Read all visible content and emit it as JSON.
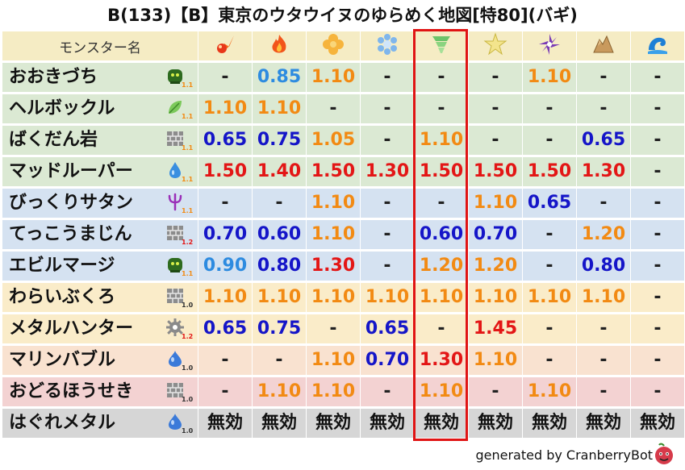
{
  "title": "B(133)【B】東京のウタウイヌのゆらめく地図[特80](バギ)",
  "header": {
    "name_label": "モンスター名",
    "elements": [
      "fire-attack",
      "fire-spell",
      "ice-spell-clover",
      "ice-flake",
      "wind-tornado",
      "light-burst",
      "dark-shuriken",
      "earth-rock",
      "water-wave"
    ]
  },
  "highlight_column_index": 4,
  "rows": [
    {
      "name": "おおきづち",
      "type_icon": "beast-icon",
      "lv": "1.1",
      "bg": "#dbe9d3",
      "values": [
        "-",
        "0.85",
        "1.10",
        "-",
        "-",
        "-",
        "1.10",
        "-",
        "-"
      ]
    },
    {
      "name": "ヘルボックル",
      "type_icon": "leaf-icon",
      "lv": "1.1",
      "bg": "#dbe9d3",
      "values": [
        "1.10",
        "1.10",
        "-",
        "-",
        "-",
        "-",
        "-",
        "-",
        "-"
      ]
    },
    {
      "name": "ばくだん岩",
      "type_icon": "brick-icon",
      "lv": "1.1",
      "bg": "#dbe9d3",
      "values": [
        "0.65",
        "0.75",
        "1.05",
        "-",
        "1.10",
        "-",
        "-",
        "0.65",
        "-"
      ]
    },
    {
      "name": "マッドルーパー",
      "type_icon": "drop-icon",
      "lv": "1.1",
      "bg": "#dbe9d3",
      "values": [
        "1.50",
        "1.40",
        "1.50",
        "1.30",
        "1.50",
        "1.50",
        "1.50",
        "1.30",
        "-"
      ]
    },
    {
      "name": "びっくりサタン",
      "type_icon": "trident-icon",
      "lv": "1.1",
      "bg": "#d5e2f1",
      "values": [
        "-",
        "-",
        "1.10",
        "-",
        "-",
        "1.10",
        "0.65",
        "-",
        "-"
      ]
    },
    {
      "name": "てっこうまじん",
      "type_icon": "brick-icon",
      "lv": "1.2",
      "bg": "#d5e2f1",
      "values": [
        "0.70",
        "0.60",
        "1.10",
        "-",
        "0.60",
        "0.70",
        "-",
        "1.20",
        "-"
      ]
    },
    {
      "name": "エビルマージ",
      "type_icon": "beast-icon",
      "lv": "1.1",
      "bg": "#d5e2f1",
      "values": [
        "0.90",
        "0.80",
        "1.30",
        "-",
        "1.20",
        "1.20",
        "-",
        "0.80",
        "-"
      ]
    },
    {
      "name": "わらいぶくろ",
      "type_icon": "brick-icon",
      "lv": "1.0",
      "bg": "#faecc9",
      "values": [
        "1.10",
        "1.10",
        "1.10",
        "1.10",
        "1.10",
        "1.10",
        "1.10",
        "1.10",
        "-"
      ]
    },
    {
      "name": "メタルハンター",
      "type_icon": "gear-icon",
      "lv": "1.2",
      "bg": "#faecc9",
      "values": [
        "0.65",
        "0.75",
        "-",
        "0.65",
        "-",
        "1.45",
        "-",
        "-",
        "-"
      ]
    },
    {
      "name": "マリンバブル",
      "type_icon": "slime-icon",
      "lv": "1.0",
      "bg": "#f9e2d0",
      "values": [
        "-",
        "-",
        "1.10",
        "0.70",
        "1.30",
        "1.10",
        "-",
        "-",
        "-"
      ]
    },
    {
      "name": "おどるほうせき",
      "type_icon": "brick-icon",
      "lv": "1.0",
      "bg": "#f3d2d2",
      "values": [
        "-",
        "1.10",
        "1.10",
        "-",
        "1.10",
        "-",
        "1.10",
        "-",
        "-"
      ]
    },
    {
      "name": "はぐれメタル",
      "type_icon": "slime-icon",
      "lv": "1.0",
      "bg": "#d6d6d6",
      "values": [
        "無効",
        "無効",
        "無効",
        "無効",
        "無効",
        "無効",
        "無効",
        "無効",
        "無効"
      ]
    }
  ],
  "footer": "generated by CranberryBot",
  "colors": {
    "header_bg": "#f5ecc4",
    "orange": "#f28a13",
    "red": "#e31616",
    "blue": "#1515c8",
    "light_blue": "#2d8be0",
    "highlight": "#e01414"
  }
}
